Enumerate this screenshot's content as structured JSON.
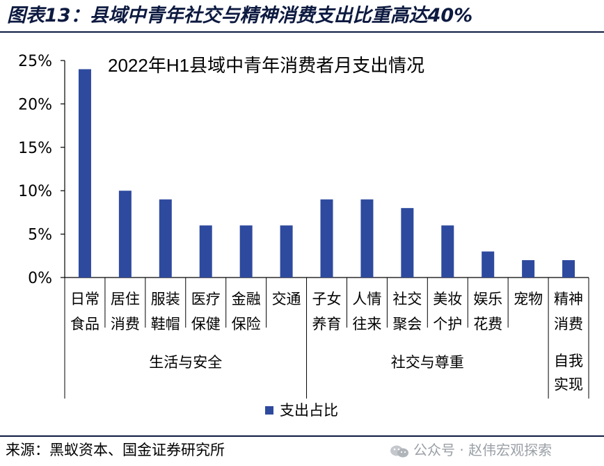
{
  "figure_title": "图表13：县域中青年社交与精神消费支出比重高达40%",
  "source": "来源：黑蚁资本、国金证券研究所",
  "watermark": "公众号 · 赵伟宏观探索",
  "colors": {
    "bar": "#2e4a9e",
    "title": "#0d1a40",
    "watermark": "#9aa0a6"
  },
  "chart_data": {
    "type": "bar",
    "title": "2022年H1县域中青年消费者月支出情况",
    "categories": [
      [
        "日常",
        "食品"
      ],
      [
        "居住",
        "消费"
      ],
      [
        "服装",
        "鞋帽"
      ],
      [
        "医疗",
        "保健"
      ],
      [
        "金融",
        "保险"
      ],
      [
        "交通"
      ],
      [
        "子女",
        "养育"
      ],
      [
        "人情",
        "往来"
      ],
      [
        "社交",
        "聚会"
      ],
      [
        "美妆",
        "个护"
      ],
      [
        "娱乐",
        "花费"
      ],
      [
        "宠物"
      ],
      [
        "精神",
        "消费"
      ]
    ],
    "groups": [
      {
        "label": "生活与安全",
        "start": 0,
        "end": 5
      },
      {
        "label": "社交与尊重",
        "start": 6,
        "end": 11
      },
      {
        "label": [
          "自我",
          "实现"
        ],
        "start": 12,
        "end": 12
      }
    ],
    "series": [
      {
        "name": "支出占比",
        "values": [
          24,
          10,
          9,
          6,
          6,
          6,
          9,
          9,
          8,
          6,
          3,
          2,
          2
        ]
      }
    ],
    "yticks": [
      "0%",
      "5%",
      "10%",
      "15%",
      "20%",
      "25%"
    ],
    "ylim": [
      0,
      25
    ],
    "unit": "%",
    "legend_position": "bottom"
  }
}
